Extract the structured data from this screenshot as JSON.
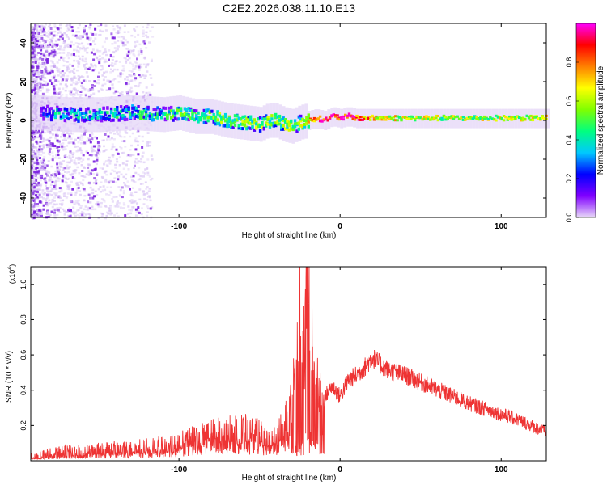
{
  "title": "C2E2.2026.038.11.10.E13",
  "chart_data": [
    {
      "type": "heatmap",
      "xlabel": "Height of straight line (km)",
      "ylabel": "Frequency (Hz)",
      "xlim": [
        -192,
        128
      ],
      "ylim": [
        -50,
        50
      ],
      "xticks": [
        -100,
        0,
        100
      ],
      "yticks": [
        -40,
        -20,
        0,
        20,
        40
      ],
      "grid": false,
      "colorbar": {
        "label": "Normalized spectral amplitude",
        "range": [
          0,
          1
        ],
        "ticks": [
          0.0,
          0.2,
          0.4,
          0.6,
          0.8
        ],
        "colormap": [
          "#e8d8f8",
          "#8000ff",
          "#0000ff",
          "#00c8ff",
          "#00ff80",
          "#80ff00",
          "#ffff00",
          "#ff8000",
          "#ff0000",
          "#ff00ff"
        ]
      },
      "trace": {
        "x": [
          -188,
          -170,
          -150,
          -130,
          -110,
          -100,
          -90,
          -80,
          -70,
          -60,
          -50,
          -45,
          -40,
          -35,
          -30,
          -25,
          -20,
          -15,
          -10,
          -5,
          0,
          5,
          10,
          20,
          40,
          60,
          80,
          100,
          128
        ],
        "y": [
          4,
          3,
          3,
          4,
          3,
          4,
          2,
          2,
          0,
          -1,
          -2,
          0,
          0,
          -2,
          -3,
          -1,
          0,
          1,
          0,
          2,
          1,
          2,
          1,
          1,
          1,
          1,
          1,
          1,
          1
        ],
        "amplitude": [
          0.25,
          0.3,
          0.3,
          0.35,
          0.35,
          0.45,
          0.45,
          0.5,
          0.5,
          0.5,
          0.5,
          0.5,
          0.5,
          0.55,
          0.5,
          0.5,
          0.7,
          0.85,
          0.9,
          0.95,
          0.9,
          0.9,
          0.85,
          0.7,
          0.6,
          0.55,
          0.55,
          0.6,
          0.6
        ]
      }
    },
    {
      "type": "line",
      "xlabel": "Height of straight line (km)",
      "ylabel": "SNR (10 * v/v)",
      "yscale_label": "(x10",
      "yscale_exp": "4",
      "yscale_close": ")",
      "xlim": [
        -192,
        128
      ],
      "ylim": [
        0,
        1.1
      ],
      "xticks": [
        -100,
        0,
        100
      ],
      "yticks": [
        0.2,
        0.4,
        0.6,
        0.8,
        1.0
      ],
      "grid": false,
      "color": "#ee3333",
      "series": [
        {
          "x": [
            -192,
            -180,
            -170,
            -160,
            -150,
            -140,
            -130,
            -120,
            -110,
            -100,
            -90,
            -80,
            -70,
            -60,
            -50,
            -45,
            -40,
            -35,
            -30,
            -27,
            -25,
            -22,
            -20,
            -18,
            -16,
            -14,
            -12,
            -10,
            -8,
            -5,
            0,
            5,
            10,
            15,
            20,
            25,
            30,
            40,
            50,
            60,
            70,
            80,
            90,
            100,
            110,
            120,
            128
          ],
          "y": [
            0.02,
            0.04,
            0.05,
            0.05,
            0.06,
            0.07,
            0.07,
            0.08,
            0.09,
            0.11,
            0.14,
            0.16,
            0.17,
            0.18,
            0.16,
            0.12,
            0.14,
            0.22,
            0.35,
            0.55,
            0.8,
            0.6,
            1.05,
            0.75,
            0.5,
            0.42,
            0.35,
            0.33,
            0.38,
            0.42,
            0.36,
            0.45,
            0.48,
            0.52,
            0.58,
            0.54,
            0.51,
            0.48,
            0.44,
            0.4,
            0.36,
            0.32,
            0.29,
            0.26,
            0.23,
            0.19,
            0.16
          ]
        }
      ]
    }
  ]
}
